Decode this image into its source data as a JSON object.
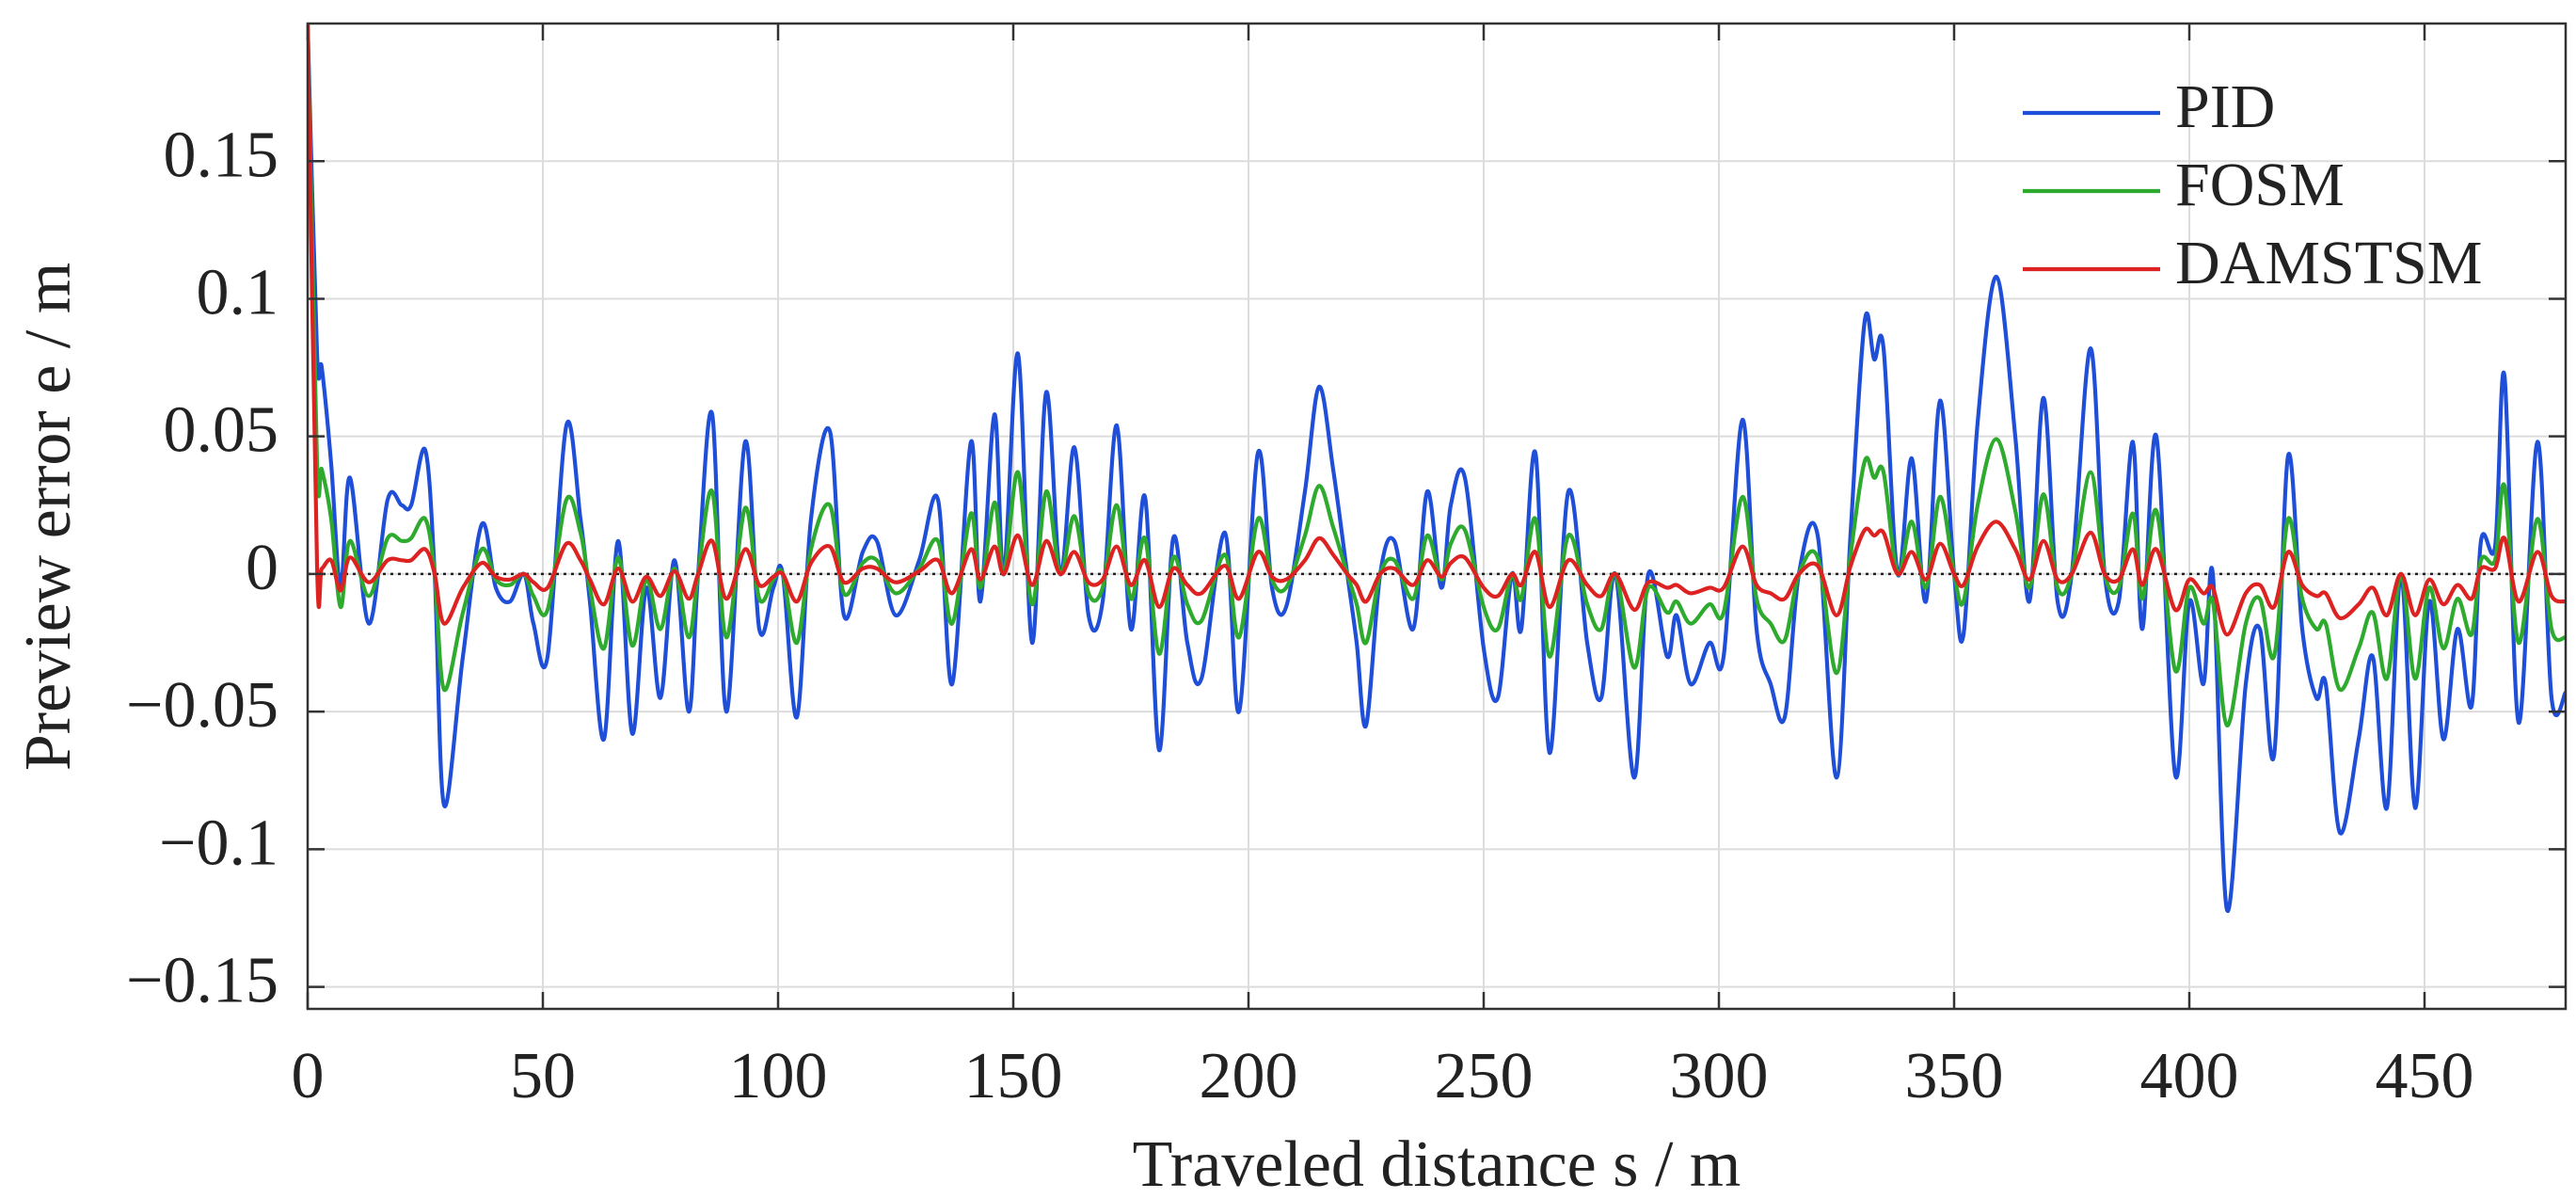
{
  "chart_data": {
    "type": "line",
    "xlabel": "Traveled distance s / m",
    "ylabel": "Preview error e / m",
    "x": [
      0,
      2,
      3,
      5,
      7,
      9,
      13,
      17,
      20,
      22,
      25,
      27,
      29,
      33,
      37,
      40,
      43,
      46,
      48,
      51,
      55,
      58,
      60,
      63,
      66,
      69,
      72,
      75,
      78,
      81,
      83,
      86,
      89,
      93,
      96,
      99,
      101,
      104,
      107,
      111,
      114,
      118,
      121,
      125,
      130,
      134,
      137,
      141,
      143,
      146,
      148,
      151,
      154,
      157,
      160,
      163,
      166,
      169,
      172,
      175,
      178,
      181,
      184,
      187,
      190,
      195,
      198,
      202,
      205,
      208,
      212,
      215,
      218,
      221,
      223,
      225,
      228,
      231,
      235,
      238,
      241,
      243,
      246,
      250,
      253,
      256,
      258,
      261,
      264,
      268,
      272,
      275,
      278,
      282,
      285,
      289,
      291,
      294,
      298,
      301,
      305,
      308,
      311,
      314,
      317,
      321,
      325,
      328,
      331,
      333,
      335,
      338,
      341,
      344,
      347,
      350,
      352,
      355,
      359,
      363,
      366,
      369,
      372,
      375,
      379,
      382,
      385,
      388,
      390,
      393,
      397,
      400,
      403,
      405,
      408,
      412,
      415,
      418,
      421,
      424,
      427,
      429,
      432,
      436,
      439,
      442,
      445,
      448,
      451,
      454,
      457,
      460,
      462,
      465,
      467,
      470,
      474,
      477,
      480
    ],
    "series": [
      {
        "name": "PID",
        "color": "#1f4fd8",
        "values": [
          0.2,
          0.08,
          0.075,
          0.04,
          -0.005,
          0.035,
          -0.018,
          0.027,
          0.025,
          0.025,
          0.045,
          0,
          -0.084,
          -0.03,
          0.018,
          -0.005,
          -0.01,
          0,
          -0.018,
          -0.03,
          0.054,
          0.02,
          -0.01,
          -0.06,
          0.012,
          -0.058,
          -0.005,
          -0.045,
          0.005,
          -0.05,
          0,
          0.058,
          -0.05,
          0.048,
          -0.02,
          -0.005,
          0,
          -0.052,
          0.02,
          0.052,
          -0.015,
          0.008,
          0.012,
          -0.015,
          0.005,
          0.027,
          -0.04,
          0.048,
          -0.01,
          0.058,
          0,
          0.08,
          -0.025,
          0.066,
          0,
          0.046,
          -0.015,
          -0.01,
          0.054,
          -0.02,
          0.028,
          -0.064,
          0.013,
          -0.025,
          -0.038,
          0.015,
          -0.05,
          0.044,
          -0.005,
          -0.012,
          0.03,
          0.068,
          0.038,
          0,
          -0.025,
          -0.055,
          0,
          0.012,
          -0.02,
          0.03,
          -0.005,
          0.025,
          0.035,
          -0.027,
          -0.045,
          0,
          -0.02,
          0.044,
          -0.065,
          0.03,
          -0.025,
          -0.045,
          0,
          -0.074,
          0,
          -0.03,
          -0.015,
          -0.04,
          -0.025,
          -0.03,
          0.056,
          -0.02,
          -0.04,
          -0.052,
          0,
          0.014,
          -0.074,
          0.015,
          0.092,
          0.078,
          0.082,
          0,
          0.042,
          -0.01,
          0.063,
          0,
          -0.022,
          0.055,
          0.108,
          0.05,
          -0.01,
          0.064,
          -0.01,
          0,
          0.082,
          0,
          -0.01,
          0.048,
          -0.02,
          0.05,
          -0.073,
          -0.01,
          -0.04,
          0,
          -0.122,
          -0.04,
          -0.02,
          -0.066,
          0.043,
          -0.02,
          -0.045,
          -0.04,
          -0.094,
          -0.06,
          -0.03,
          -0.085,
          0,
          -0.085,
          -0.01,
          -0.06,
          -0.02,
          -0.048,
          0.012,
          0.01,
          0.072,
          -0.054,
          0.048,
          -0.045,
          -0.043
        ]
      },
      {
        "name": "FOSM",
        "color": "#2eaa2e",
        "values": [
          0.2,
          0.04,
          0.038,
          0.02,
          -0.012,
          0.012,
          -0.008,
          0.013,
          0.012,
          0.013,
          0.02,
          0,
          -0.042,
          -0.014,
          0.009,
          -0.002,
          -0.004,
          0,
          -0.008,
          -0.013,
          0.027,
          0.015,
          -0.005,
          -0.027,
          0.006,
          -0.026,
          -0.002,
          -0.02,
          0.002,
          -0.023,
          0,
          0.03,
          -0.023,
          0.024,
          -0.009,
          -0.002,
          0,
          -0.025,
          0.009,
          0.025,
          -0.007,
          0.004,
          0.005,
          -0.007,
          0.002,
          0.012,
          -0.018,
          0.022,
          -0.005,
          0.026,
          0,
          0.037,
          -0.011,
          0.03,
          0,
          0.021,
          -0.007,
          -0.005,
          0.025,
          -0.009,
          0.013,
          -0.029,
          0.006,
          -0.011,
          -0.017,
          0.007,
          -0.023,
          0.02,
          -0.002,
          -0.005,
          0.014,
          0.032,
          0.017,
          0,
          -0.011,
          -0.025,
          0,
          0.005,
          -0.009,
          0.014,
          -0.002,
          0.011,
          0.016,
          -0.012,
          -0.02,
          0,
          -0.009,
          0.02,
          -0.03,
          0.014,
          -0.011,
          -0.02,
          0,
          -0.034,
          -0.005,
          -0.014,
          -0.01,
          -0.018,
          -0.011,
          -0.014,
          0.028,
          -0.009,
          -0.018,
          -0.024,
          0,
          0.006,
          -0.036,
          0.007,
          0.041,
          0.035,
          0.037,
          0,
          0.019,
          -0.005,
          0.028,
          0,
          -0.01,
          0.025,
          0.049,
          0.023,
          -0.005,
          0.029,
          -0.005,
          0,
          0.037,
          0,
          -0.005,
          0.022,
          -0.009,
          0.023,
          -0.035,
          -0.005,
          -0.018,
          -0.01,
          -0.055,
          -0.018,
          -0.009,
          -0.03,
          0.02,
          -0.009,
          -0.02,
          -0.018,
          -0.042,
          -0.027,
          -0.014,
          -0.038,
          0,
          -0.038,
          -0.005,
          -0.027,
          -0.009,
          -0.022,
          0.005,
          0.005,
          0.032,
          -0.025,
          0.02,
          -0.02,
          -0.023
        ]
      },
      {
        "name": "DAMSTSM",
        "color": "#dd2222",
        "values": [
          0.2,
          0.003,
          0.002,
          0.005,
          -0.006,
          0.006,
          -0.003,
          0.005,
          0.005,
          0.005,
          0.009,
          0,
          -0.018,
          -0.005,
          0.004,
          -0.001,
          -0.002,
          0,
          -0.003,
          -0.005,
          0.011,
          0.005,
          -0.002,
          -0.011,
          0.002,
          -0.01,
          -0.001,
          -0.008,
          0.001,
          -0.009,
          0,
          0.012,
          -0.009,
          0.009,
          -0.004,
          -0.001,
          0,
          -0.01,
          0.004,
          0.01,
          -0.003,
          0.002,
          0.002,
          -0.003,
          0.001,
          0.005,
          -0.007,
          0.009,
          -0.002,
          0.01,
          0,
          0.014,
          -0.004,
          0.012,
          0,
          0.008,
          -0.003,
          -0.002,
          0.01,
          -0.004,
          0.005,
          -0.012,
          0.002,
          -0.004,
          -0.007,
          0.003,
          -0.009,
          0.008,
          -0.001,
          -0.002,
          0.005,
          0.013,
          0.007,
          0,
          -0.004,
          -0.01,
          0,
          0.002,
          -0.004,
          0.005,
          -0.001,
          0.004,
          0.006,
          -0.005,
          -0.008,
          0,
          -0.004,
          0.008,
          -0.012,
          0.005,
          -0.004,
          -0.008,
          0,
          -0.013,
          -0.003,
          -0.005,
          -0.004,
          -0.007,
          -0.005,
          -0.005,
          0.01,
          -0.004,
          -0.007,
          -0.009,
          0,
          0.003,
          -0.015,
          0.003,
          0.016,
          0.014,
          0.015,
          0,
          0.008,
          -0.002,
          0.011,
          0,
          -0.004,
          0.01,
          0.019,
          0.009,
          -0.002,
          0.012,
          -0.002,
          0,
          0.015,
          0,
          -0.002,
          0.009,
          -0.004,
          0.009,
          -0.013,
          -0.002,
          -0.007,
          -0.005,
          -0.022,
          -0.007,
          -0.004,
          -0.012,
          0.008,
          -0.004,
          -0.008,
          -0.007,
          -0.016,
          -0.011,
          -0.005,
          -0.015,
          0,
          -0.015,
          -0.002,
          -0.011,
          -0.004,
          -0.009,
          0.002,
          0.002,
          0.013,
          -0.01,
          0.008,
          -0.008,
          -0.01
        ]
      }
    ],
    "xlim": [
      0,
      480
    ],
    "ylim": [
      -0.158,
      0.2
    ],
    "xticks": [
      0,
      50,
      100,
      150,
      200,
      250,
      300,
      350,
      400,
      450
    ],
    "yticks": [
      {
        "value": -0.15,
        "label": "−0.15"
      },
      {
        "value": -0.1,
        "label": "−0.1"
      },
      {
        "value": -0.05,
        "label": "−0.05"
      },
      0,
      0.05,
      0.1,
      0.15
    ],
    "grid": true,
    "legend": "upper right"
  }
}
